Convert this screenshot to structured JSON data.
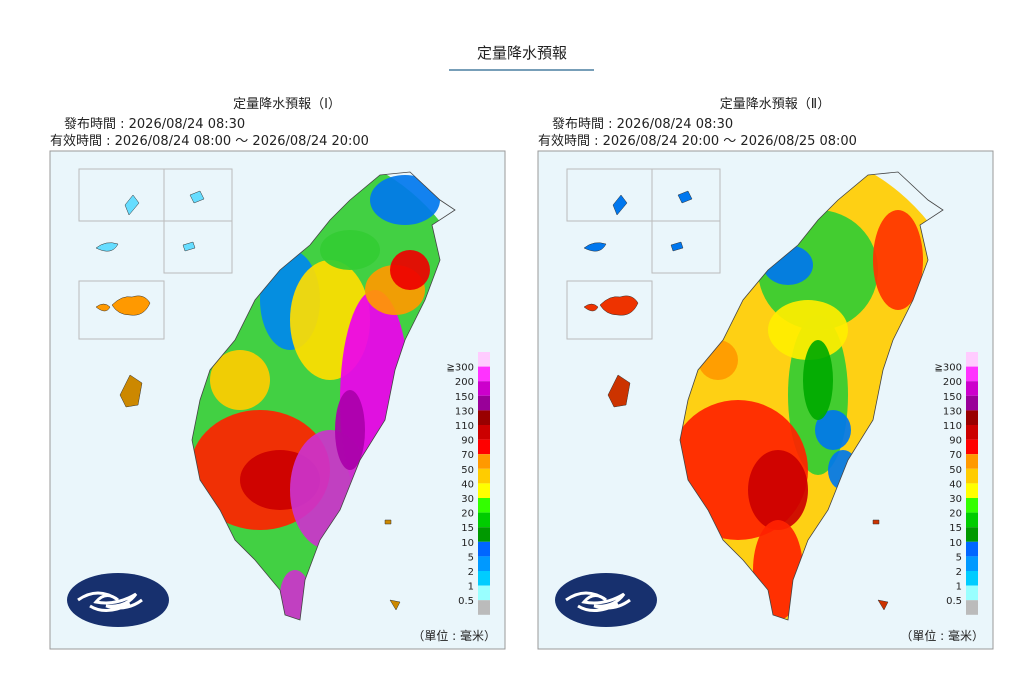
{
  "header": {
    "title": "定量降水預報"
  },
  "panels": [
    {
      "title": "定量降水預報（Ⅰ）",
      "issued": "發布時間 : 2026/08/24 08:30",
      "valid": "有效時間 : 2026/08/24 08:00 ～ 2026/08/24 20:00",
      "unit": "（單位 : 毫米）"
    },
    {
      "title": "定量降水預報（Ⅱ）",
      "issued": "發布時間 : 2026/08/24 08:30",
      "valid": "有效時間 : 2026/08/24 20:00 ～ 2026/08/25 08:00",
      "unit": "（單位 : 毫米）"
    }
  ],
  "legend": {
    "labels": [
      "≧300",
      "200",
      "150",
      "130",
      "110",
      "90",
      "70",
      "50",
      "40",
      "30",
      "20",
      "15",
      "10",
      "5",
      "2",
      "1",
      "0.5"
    ],
    "colors": [
      "#ffccff",
      "#ff33ff",
      "#cc00cc",
      "#990099",
      "#990000",
      "#cc0000",
      "#ff0000",
      "#ff9900",
      "#ffcc00",
      "#ffff00",
      "#33ff00",
      "#00cc00",
      "#009900",
      "#0066ff",
      "#0099ff",
      "#00ccff",
      "#99ffff",
      "#bbbbbb"
    ]
  }
}
